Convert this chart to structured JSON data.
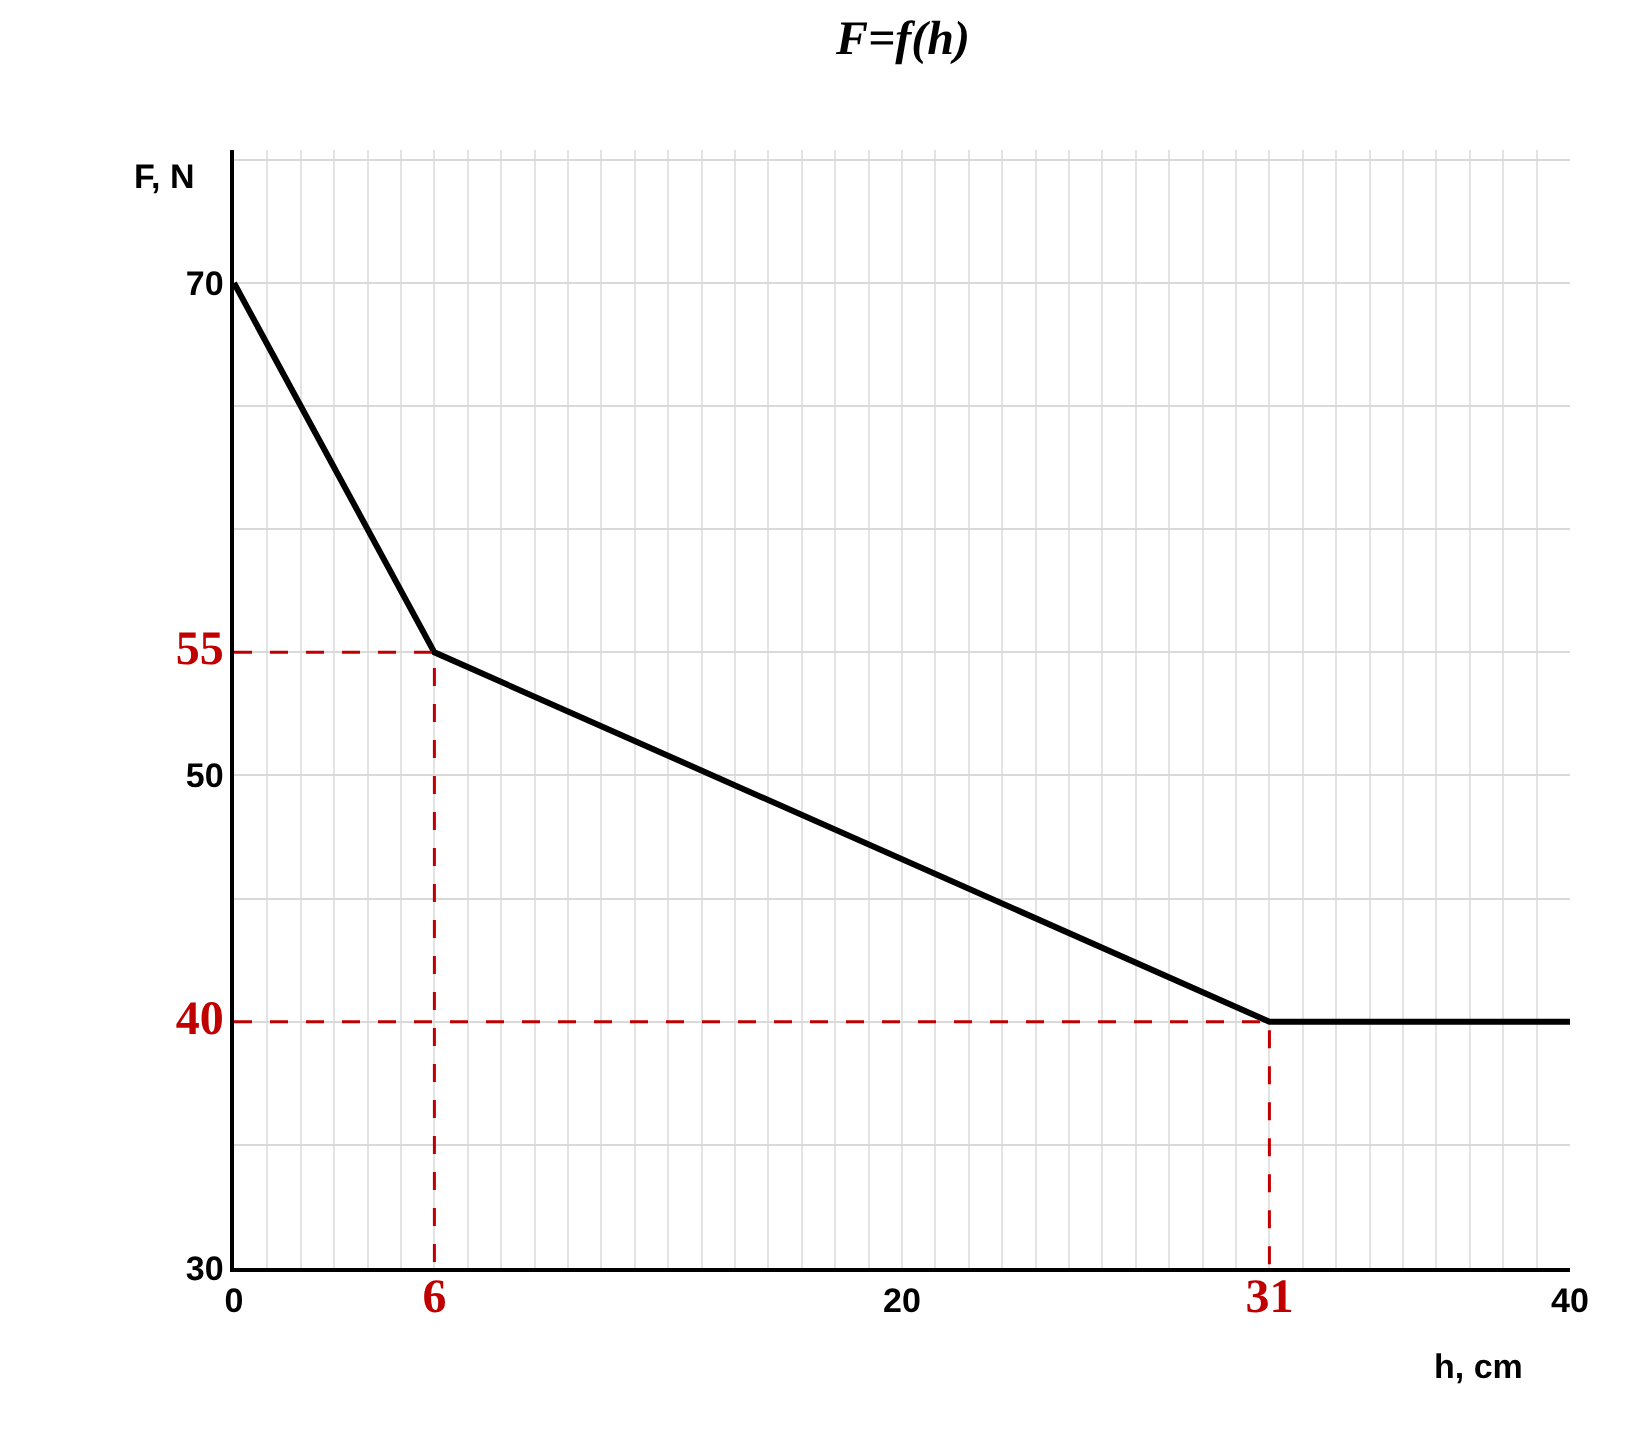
{
  "chart_data": {
    "type": "line",
    "title": "F=f(h)",
    "xlabel": "h, cm",
    "ylabel": "F, N",
    "series": [
      {
        "color": "#000000",
        "x": [
          0,
          6,
          31,
          40
        ],
        "values": [
          70,
          55,
          40,
          40
        ],
        "line_style": "solid"
      },
      {
        "color": "#c00000",
        "x": [
          0,
          6,
          6
        ],
        "values": [
          55,
          55,
          30
        ],
        "line_style": "dashed"
      },
      {
        "color": "#c00000",
        "x": [
          0,
          31,
          31
        ],
        "values": [
          40,
          40,
          30
        ],
        "line_style": "dashed"
      }
    ],
    "xlim": [
      0,
      40
    ],
    "ylim": [
      30,
      75.4
    ],
    "xticks": [
      0,
      6,
      20,
      31,
      40
    ],
    "yticks": [
      30,
      40,
      50,
      55,
      70
    ],
    "grid": true,
    "marker": "none"
  }
}
